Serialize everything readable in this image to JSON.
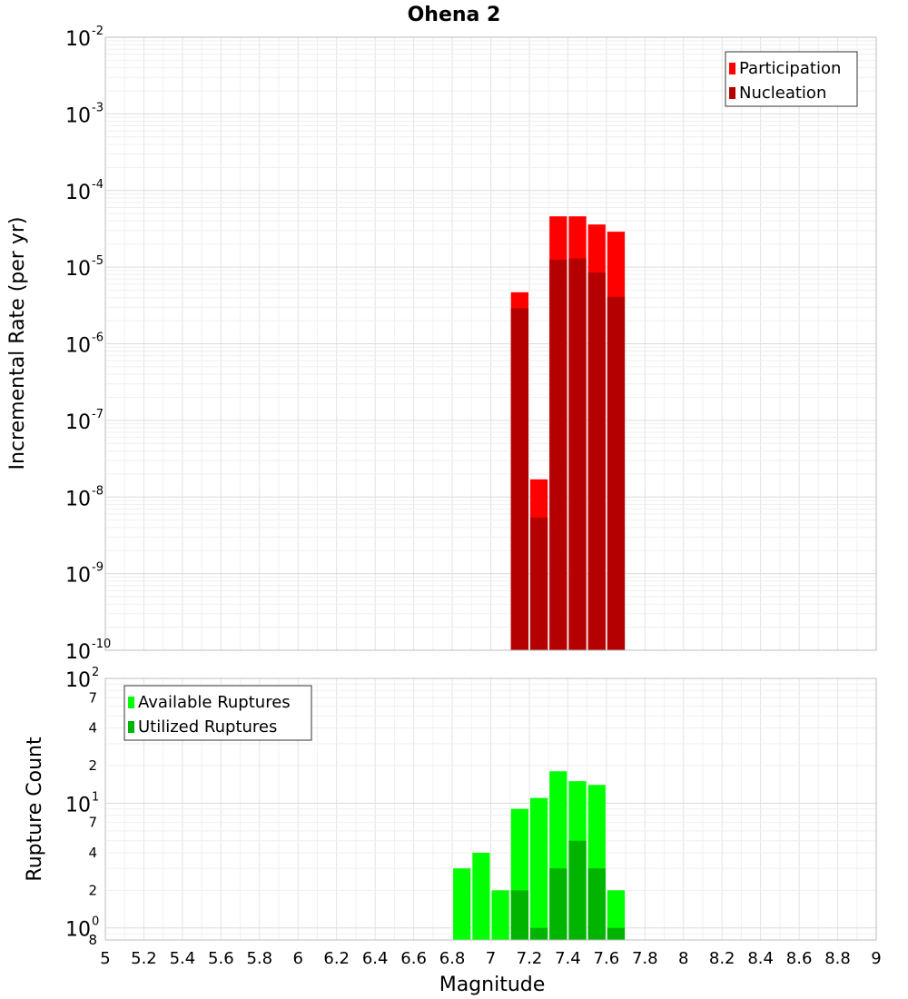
{
  "chart_data": [
    {
      "type": "bar",
      "title": "Ohena 2",
      "xlabel": "Magnitude",
      "ylabel": "Incremental Rate (per yr)",
      "yscale": "log",
      "ylim": [
        1e-10,
        0.01
      ],
      "xlim": [
        5,
        9
      ],
      "bin_width": 0.1,
      "y_ticks": [
        {
          "base": "10",
          "exp": "-2",
          "value": 0.01
        },
        {
          "base": "10",
          "exp": "-3",
          "value": 0.001
        },
        {
          "base": "10",
          "exp": "-4",
          "value": 0.0001
        },
        {
          "base": "10",
          "exp": "-5",
          "value": 1e-05
        },
        {
          "base": "10",
          "exp": "-6",
          "value": 1e-06
        },
        {
          "base": "10",
          "exp": "-7",
          "value": 1e-07
        },
        {
          "base": "10",
          "exp": "-8",
          "value": 1e-08
        },
        {
          "base": "10",
          "exp": "-9",
          "value": 1e-09
        },
        {
          "base": "10",
          "exp": "-10",
          "value": 1e-10
        }
      ],
      "legend": {
        "position": "top-right"
      },
      "series": [
        {
          "name": "Participation",
          "color": "#ff0000",
          "x": [
            7.15,
            7.25,
            7.35,
            7.45,
            7.55,
            7.65
          ],
          "values": [
            4.7e-06,
            1.7e-08,
            4.6e-05,
            4.6e-05,
            3.6e-05,
            2.9e-05
          ]
        },
        {
          "name": "Nucleation",
          "color": "#b40000",
          "x": [
            7.15,
            7.25,
            7.35,
            7.45,
            7.55,
            7.65
          ],
          "values": [
            2.9e-06,
            5.4e-09,
            1.25e-05,
            1.3e-05,
            8.5e-06,
            4.1e-06
          ]
        }
      ]
    },
    {
      "type": "bar",
      "xlabel": "Magnitude",
      "ylabel": "Rupture Count",
      "yscale": "log",
      "ylim": [
        0.8,
        100
      ],
      "xlim": [
        5,
        9
      ],
      "bin_width": 0.1,
      "y_ticks": [
        {
          "base": "10",
          "exp": "2",
          "value": 100
        },
        {
          "base": "10",
          "exp": "1",
          "value": 10
        },
        {
          "base": "10",
          "exp": "0",
          "value": 1
        }
      ],
      "y_minor_ticks": [
        {
          "label": "7",
          "value": 70
        },
        {
          "label": "4",
          "value": 40
        },
        {
          "label": "2",
          "value": 20
        },
        {
          "label": "7",
          "value": 7
        },
        {
          "label": "4",
          "value": 4
        },
        {
          "label": "2",
          "value": 2
        },
        {
          "label": "8",
          "value": 0.8
        }
      ],
      "legend": {
        "position": "top-left"
      },
      "series": [
        {
          "name": "Available Ruptures",
          "color": "#00ff00",
          "x": [
            6.85,
            6.95,
            7.05,
            7.15,
            7.25,
            7.35,
            7.45,
            7.55,
            7.65
          ],
          "values": [
            3,
            4,
            2,
            9,
            11,
            18,
            15,
            14,
            2
          ]
        },
        {
          "name": "Utilized Ruptures",
          "color": "#00b400",
          "x": [
            7.15,
            7.25,
            7.35,
            7.45,
            7.55,
            7.65
          ],
          "values": [
            2,
            1,
            3,
            5,
            3,
            1
          ]
        }
      ]
    }
  ],
  "x_ticks": [
    "5",
    "5.2",
    "5.4",
    "5.6",
    "5.8",
    "6",
    "6.2",
    "6.4",
    "6.6",
    "6.8",
    "7",
    "7.2",
    "7.4",
    "7.6",
    "7.8",
    "8",
    "8.2",
    "8.4",
    "8.6",
    "8.8",
    "9"
  ]
}
